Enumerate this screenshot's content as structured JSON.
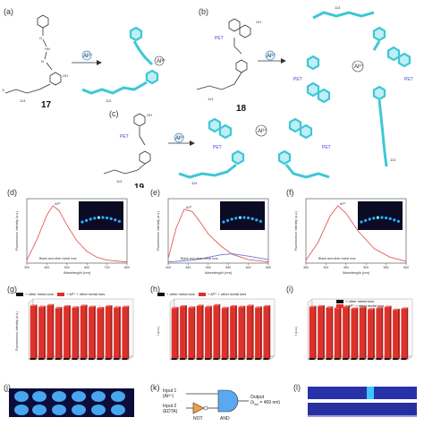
{
  "figure": {
    "panel_labels": [
      "(a)",
      "(b)",
      "(c)",
      "(d)",
      "(e)",
      "(f)",
      "(g)",
      "(h)",
      "(i)",
      "(j)",
      "(k)",
      "(l)"
    ],
    "compounds": {
      "a": "17",
      "b": "18",
      "c": "19"
    },
    "ion_badge": "Al³⁺",
    "subscript_113": "113",
    "pet_label": "PET",
    "colors": {
      "polymer_blue": "#3ec7d6",
      "curve_red": "#e45a5a",
      "curve_blue": "#6a78d8",
      "bar_red": "#e0302a",
      "glow": "#2ab0ff",
      "dark_bg": "#0b0b24",
      "gate_fill": "#5aa9f0",
      "not_fill": "#f0a040"
    }
  },
  "spectra": [
    {
      "panel": "d",
      "ylabel": "Fluorescence intensity (a.u.)",
      "xlabel": "Wavelength (nm)",
      "peak_label": "Al³⁺",
      "note": "Blank and other metal ions",
      "ticks_x": [
        "300",
        "400",
        "500",
        "600",
        "700",
        "800"
      ],
      "chart_data": {
        "type": "line",
        "x": [
          300,
          350,
          400,
          430,
          460,
          500,
          550,
          600,
          650,
          700,
          800
        ],
        "series": [
          {
            "values": [
              5,
              40,
              82,
              98,
              90,
              65,
              38,
              20,
              10,
              5,
              2
            ]
          }
        ],
        "xlim": [
          300,
          800
        ],
        "ylim": [
          0,
          110
        ]
      }
    },
    {
      "panel": "e",
      "ylabel": "Fluorescence intensity (a.u.)",
      "xlabel": "Wavelength (nm)",
      "peak_label": "Al³⁺",
      "note": "Blank and other metal ions",
      "ticks_x": [
        "400",
        "450",
        "500",
        "550",
        "600",
        "650"
      ],
      "chart_data": {
        "type": "line",
        "x": [
          400,
          420,
          440,
          460,
          480,
          500,
          530,
          560,
          600,
          650
        ],
        "series": [
          {
            "values": [
              8,
              60,
              92,
              88,
              70,
              50,
              30,
              15,
              6,
              2
            ]
          },
          {
            "values": [
              2,
              3,
              4,
              5,
              7,
              10,
              14,
              16,
              12,
              6
            ]
          }
        ],
        "xlim": [
          400,
          650
        ],
        "ylim": [
          0,
          110
        ]
      }
    },
    {
      "panel": "f",
      "ylabel": "Fluorescence intensity (a.u.)",
      "xlabel": "Wavelength (nm)",
      "peak_label": "Al³⁺",
      "note": "Blank and other metal ions",
      "ticks_x": [
        "350",
        "400",
        "450",
        "500",
        "550",
        "600"
      ],
      "chart_data": {
        "type": "line",
        "x": [
          350,
          380,
          410,
          430,
          450,
          480,
          520,
          560,
          600
        ],
        "series": [
          {
            "values": [
              5,
              35,
              80,
              98,
              85,
              55,
              25,
              10,
              3
            ]
          }
        ],
        "xlim": [
          350,
          600
        ],
        "ylim": [
          0,
          110
        ]
      }
    }
  ],
  "bars": [
    {
      "panel": "g",
      "legend": [
        "+ other metal ions",
        "+ Al³⁺ + other metal ions"
      ],
      "ylabel": "Fluorescence intensity (a.u.)",
      "chart_data": {
        "type": "bar",
        "values": [
          94,
          92,
          95,
          90,
          93,
          91,
          94,
          92,
          90,
          93,
          91,
          92
        ],
        "baseline": [
          3,
          3,
          3,
          3,
          3,
          3,
          3,
          3,
          3,
          3,
          3,
          3
        ],
        "ylim": [
          0,
          100
        ]
      }
    },
    {
      "panel": "h",
      "legend": [
        "+ other metal ions",
        "+ Al³⁺ + other metal ions"
      ],
      "ylabel": "I (a.u.)",
      "chart_data": {
        "type": "bar",
        "values": [
          90,
          93,
          91,
          94,
          92,
          95,
          90,
          93,
          92,
          94,
          91,
          93
        ],
        "baseline": [
          3,
          3,
          3,
          3,
          3,
          3,
          3,
          3,
          3,
          3,
          3,
          3
        ],
        "ylim": [
          0,
          100
        ]
      }
    },
    {
      "panel": "i",
      "legend": [
        "+ other metal ions",
        "+ Al³⁺ + other metal ions"
      ],
      "ylabel": "I (a.u.)",
      "chart_data": {
        "type": "bar",
        "values": [
          92,
          93,
          91,
          90,
          92,
          89,
          91,
          88,
          90,
          92,
          87,
          89
        ],
        "baseline": [
          3,
          3,
          3,
          3,
          3,
          3,
          3,
          3,
          3,
          3,
          3,
          3
        ],
        "ylim": [
          0,
          100
        ]
      }
    }
  ],
  "logic": {
    "input1": "Input 1",
    "input1_ion": "(Al³⁺)",
    "input2": "Input 2",
    "input2_ion": "(EDTA)",
    "not_label": "NOT",
    "and_label": "AND",
    "output": "Output",
    "output_cond": "(λ",
    "output_sub": "em",
    "output_val": " = 469 nm)"
  }
}
